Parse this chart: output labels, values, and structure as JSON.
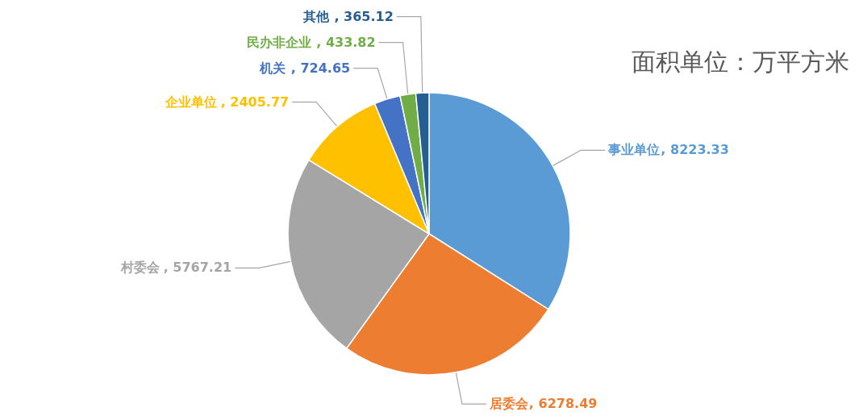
{
  "chart_data": {
    "type": "pie",
    "title": "面积单位：万平方米",
    "categories": [
      "事业单位",
      "居委会",
      "村委会",
      "企业单位",
      "机关",
      "民办非企业",
      "其他"
    ],
    "values": [
      8223.33,
      6278.49,
      5767.21,
      2405.77,
      724.65,
      433.82,
      365.12
    ],
    "colors": [
      "#5b9bd5",
      "#ed7d31",
      "#a5a5a5",
      "#ffc000",
      "#4472c4",
      "#70ad47",
      "#255e91"
    ],
    "value_labels": [
      ", 8223.33",
      ", 6278.49",
      ", 5767.21",
      ", 2405.77",
      ", 724.65",
      ", 433.82",
      ", 365.12"
    ]
  }
}
